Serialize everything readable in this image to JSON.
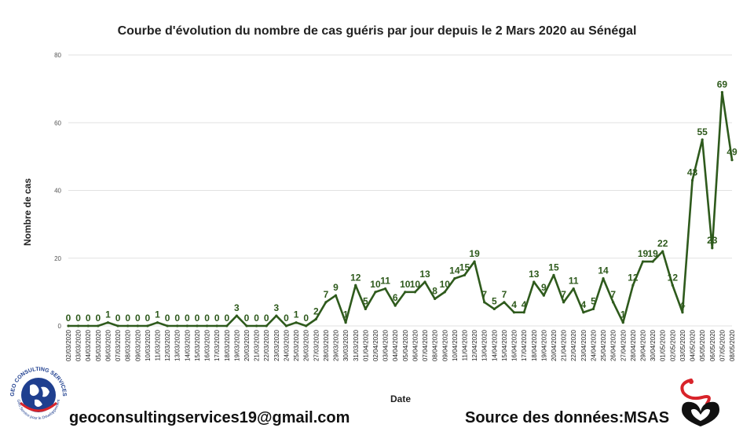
{
  "footer": {
    "email": "geoconsultingservices19@gmail.com",
    "source": "Source des données:MSAS",
    "logo_left_text": "GEO CONSULTING SERVICES",
    "logo_left_motto": "Géo Service pour le Développement"
  },
  "colors": {
    "line": "#2e5a1c",
    "label": "#2e5a1c",
    "grid": "#e2e2e2",
    "logo_red": "#d8232a",
    "logo_blue": "#1f3f8f"
  },
  "chart_data": {
    "type": "line",
    "title": "Courbe d'évolution du nombre de cas guéris par jour depuis le 2 Mars 2020 au Sénégal",
    "xlabel": "Date",
    "ylabel": "Nombre de cas",
    "ylim": [
      0,
      80
    ],
    "yticks": [
      0,
      20,
      40,
      60,
      80
    ],
    "grid": true,
    "legend": "none",
    "categories": [
      "02/03/2020",
      "03/03/2020",
      "04/03/2020",
      "05/03/2020",
      "06/03/2020",
      "07/03/2020",
      "08/03/2020",
      "09/03/2020",
      "10/03/2020",
      "11/03/2020",
      "12/03/2020",
      "13/03/2020",
      "14/03/2020",
      "15/03/2020",
      "16/03/2020",
      "17/03/2020",
      "18/03/2020",
      "19/03/2020",
      "20/03/2020",
      "21/03/2020",
      "22/03/2020",
      "23/03/2020",
      "24/03/2020",
      "25/03/2020",
      "26/03/2020",
      "27/03/2020",
      "28/03/2020",
      "29/03/2020",
      "30/03/2020",
      "31/03/2020",
      "01/04/2020",
      "02/04/2020",
      "03/04/2020",
      "04/04/2020",
      "05/04/2020",
      "06/04/2020",
      "07/04/2020",
      "08/04/2020",
      "09/04/2020",
      "10/04/2020",
      "11/04/2020",
      "12/04/2020",
      "13/04/2020",
      "14/04/2020",
      "15/04/2020",
      "16/04/2020",
      "17/04/2020",
      "18/04/2020",
      "19/04/2020",
      "20/04/2020",
      "21/04/2020",
      "22/04/2020",
      "23/04/2020",
      "24/04/2020",
      "25/04/2020",
      "26/04/2020",
      "27/04/2020",
      "28/04/2020",
      "29/04/2020",
      "30/04/2020",
      "01/05/2020",
      "02/05/2020",
      "03/05/2020",
      "04/05/2020",
      "05/05/2020",
      "06/05/2020",
      "07/05/2020",
      "08/05/2020"
    ],
    "values": [
      0,
      0,
      0,
      0,
      1,
      0,
      0,
      0,
      0,
      1,
      0,
      0,
      0,
      0,
      0,
      0,
      0,
      3,
      0,
      0,
      0,
      3,
      0,
      1,
      0,
      2,
      7,
      9,
      1,
      12,
      5,
      10,
      11,
      6,
      10,
      10,
      13,
      8,
      10,
      14,
      15,
      19,
      7,
      5,
      7,
      4,
      4,
      13,
      9,
      15,
      7,
      11,
      4,
      5,
      14,
      7,
      1,
      12,
      19,
      19,
      22,
      12,
      4,
      43,
      55,
      23,
      69,
      49
    ]
  }
}
